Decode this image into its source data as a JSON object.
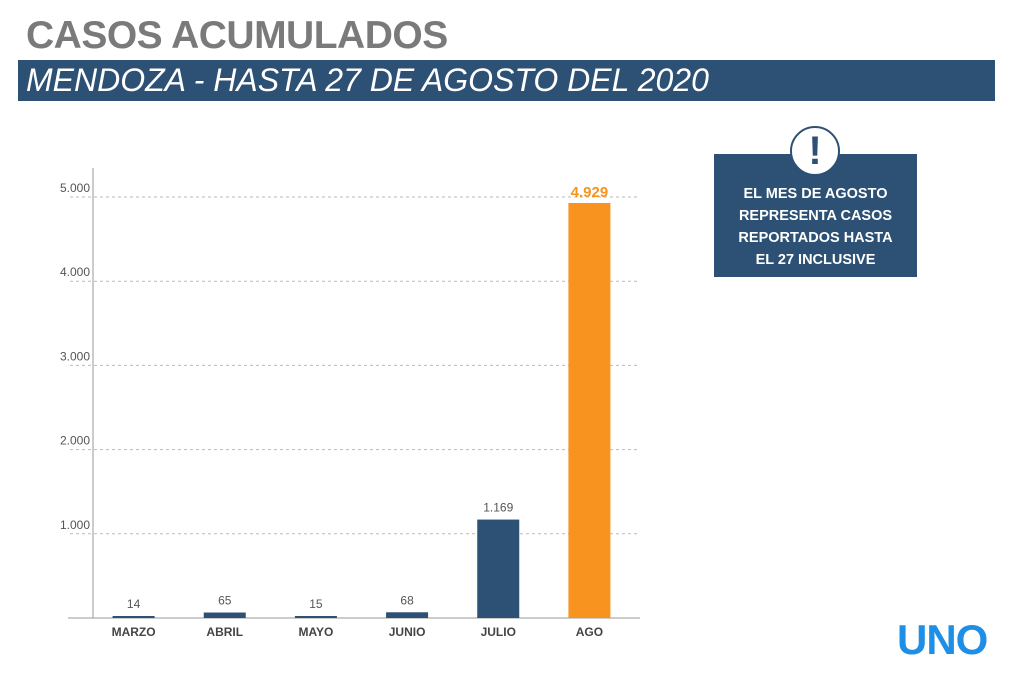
{
  "header": {
    "title": "CASOS ACUMULADOS",
    "subtitle": "MENDOZA - HASTA 27 DE AGOSTO DEL 2020"
  },
  "note": {
    "lines": [
      "EL MES DE AGOSTO",
      "REPRESENTA CASOS",
      "REPORTADOS HASTA",
      "EL 27 INCLUSIVE"
    ],
    "icon": "exclamation-icon"
  },
  "logo": "UNO",
  "chart_data": {
    "type": "bar",
    "title": "CASOS ACUMULADOS",
    "categories": [
      "MARZO",
      "ABRIL",
      "MAYO",
      "JUNIO",
      "JULIO",
      "AGO"
    ],
    "values": [
      14,
      65,
      15,
      68,
      1169,
      4929
    ],
    "value_labels": [
      "14",
      "65",
      "15",
      "68",
      "1.169",
      "4.929"
    ],
    "colors": [
      "#2d5075",
      "#2d5075",
      "#2d5075",
      "#2d5075",
      "#2d5075",
      "#f7931e"
    ],
    "yticks": [
      1000,
      2000,
      3000,
      4000,
      5000
    ],
    "ytick_labels": [
      "1.000",
      "2.000",
      "3.000",
      "4.000",
      "5.000"
    ],
    "ylim": [
      0,
      5000
    ],
    "grid": true,
    "xlabel": "",
    "ylabel": ""
  }
}
